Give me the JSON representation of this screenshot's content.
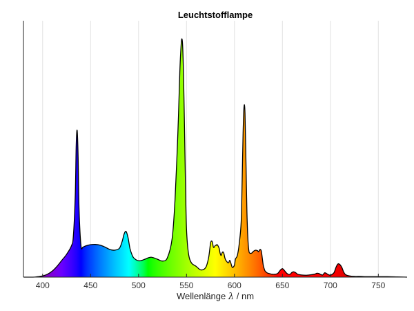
{
  "chart_data": {
    "type": "area",
    "title": "Leuchtstofflampe",
    "xlabel_prefix": "Wellenlänge",
    "xlabel_symbol": "λ",
    "xlabel_suffix": "/ nm",
    "ylabel": "",
    "xlim": [
      380,
      780
    ],
    "ylim": [
      0,
      1
    ],
    "grid": "vertical",
    "xticks": [
      400,
      450,
      500,
      550,
      600,
      650,
      700,
      750
    ],
    "x": [
      380,
      390,
      395,
      400,
      405,
      410,
      415,
      420,
      425,
      430,
      432,
      434,
      435,
      436,
      437,
      438,
      440,
      442,
      445,
      450,
      455,
      460,
      465,
      470,
      475,
      480,
      483,
      485,
      487,
      489,
      491,
      493,
      495,
      500,
      505,
      510,
      513,
      516,
      520,
      525,
      530,
      535,
      538,
      541,
      543,
      544,
      545,
      546,
      547,
      548,
      549,
      550,
      552,
      555,
      560,
      565,
      570,
      573,
      575,
      576,
      577,
      578,
      579,
      580,
      581,
      582,
      584,
      585,
      586,
      587,
      588,
      589,
      590,
      591,
      592,
      593,
      594,
      595,
      596,
      597,
      598,
      600,
      601,
      603,
      605,
      607,
      608,
      609,
      610,
      611,
      612,
      613,
      614,
      615,
      616,
      618,
      620,
      622,
      624,
      625,
      626,
      627,
      628,
      629,
      630,
      631,
      632,
      634,
      636,
      638,
      640,
      642,
      645,
      648,
      650,
      652,
      654,
      656,
      658,
      660,
      662,
      664,
      666,
      670,
      675,
      680,
      684,
      686,
      688,
      690,
      692,
      694,
      696,
      698,
      700,
      702,
      704,
      706,
      708,
      710,
      712,
      714,
      716,
      720,
      725,
      730,
      740,
      750,
      760,
      770,
      780
    ],
    "y": [
      0,
      0,
      0.002,
      0.005,
      0.012,
      0.025,
      0.045,
      0.07,
      0.095,
      0.13,
      0.17,
      0.34,
      0.55,
      0.61,
      0.5,
      0.28,
      0.13,
      0.125,
      0.13,
      0.135,
      0.136,
      0.133,
      0.125,
      0.115,
      0.112,
      0.12,
      0.15,
      0.18,
      0.19,
      0.165,
      0.12,
      0.095,
      0.08,
      0.068,
      0.072,
      0.08,
      0.083,
      0.08,
      0.074,
      0.067,
      0.08,
      0.16,
      0.32,
      0.6,
      0.85,
      0.94,
      0.99,
      0.96,
      0.82,
      0.6,
      0.37,
      0.2,
      0.1,
      0.06,
      0.045,
      0.03,
      0.04,
      0.08,
      0.14,
      0.15,
      0.145,
      0.125,
      0.125,
      0.132,
      0.132,
      0.135,
      0.12,
      0.1,
      0.09,
      0.1,
      0.105,
      0.098,
      0.08,
      0.07,
      0.065,
      0.06,
      0.06,
      0.07,
      0.062,
      0.048,
      0.04,
      0.05,
      0.075,
      0.09,
      0.14,
      0.23,
      0.4,
      0.6,
      0.71,
      0.68,
      0.48,
      0.27,
      0.16,
      0.11,
      0.1,
      0.1,
      0.108,
      0.112,
      0.11,
      0.105,
      0.112,
      0.115,
      0.108,
      0.08,
      0.05,
      0.035,
      0.025,
      0.018,
      0.015,
      0.013,
      0.012,
      0.012,
      0.015,
      0.03,
      0.035,
      0.028,
      0.018,
      0.012,
      0.012,
      0.02,
      0.022,
      0.018,
      0.012,
      0.009,
      0.008,
      0.01,
      0.013,
      0.016,
      0.015,
      0.011,
      0.009,
      0.018,
      0.015,
      0.01,
      0.008,
      0.012,
      0.02,
      0.042,
      0.055,
      0.052,
      0.04,
      0.02,
      0.01,
      0.005,
      0.003,
      0.003,
      0.002,
      0.002,
      0.002,
      0.001,
      0
    ]
  }
}
